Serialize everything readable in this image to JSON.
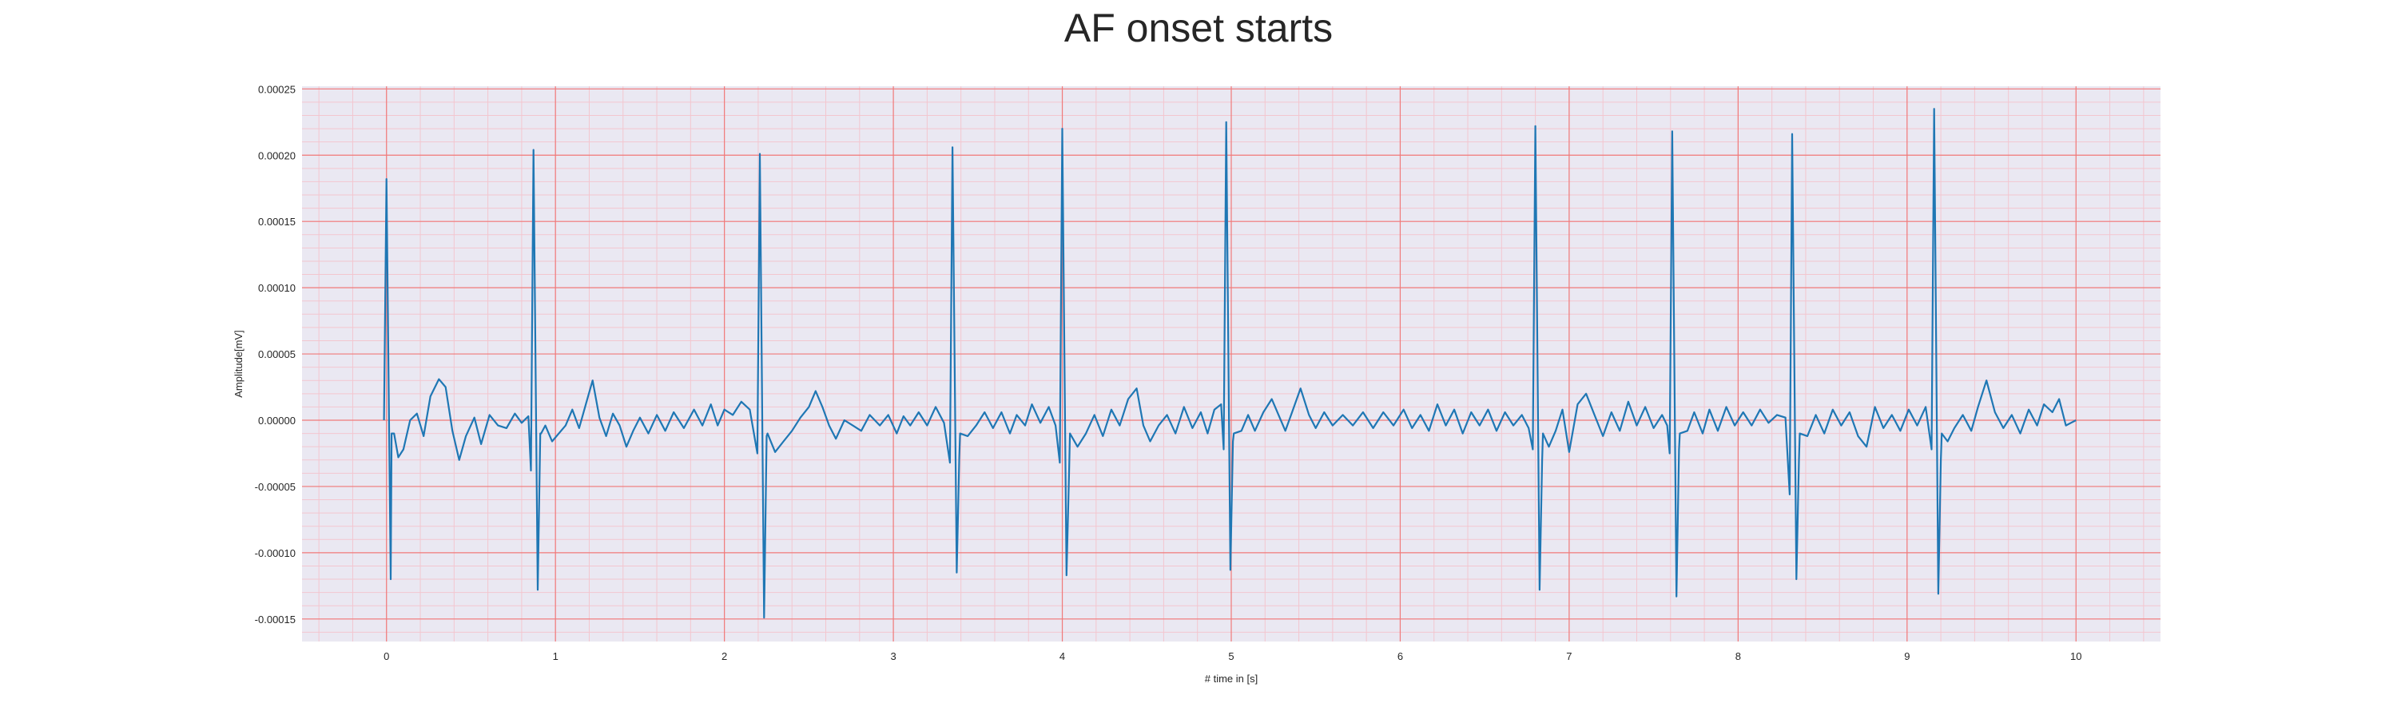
{
  "chart_data": {
    "type": "line",
    "title": "AF onset starts",
    "xlabel": "# time in [s]",
    "ylabel": "Amplitude[mV]",
    "xlim": [
      -0.5,
      10.5
    ],
    "ylim": [
      -0.000167,
      0.000252
    ],
    "xticks": [
      0,
      1,
      2,
      3,
      4,
      5,
      6,
      7,
      8,
      9,
      10
    ],
    "xtick_labels": [
      "0",
      "1",
      "2",
      "3",
      "4",
      "5",
      "6",
      "7",
      "8",
      "9",
      "10"
    ],
    "yticks": [
      -0.00015,
      -0.0001,
      -5e-05,
      0,
      5e-05,
      0.0001,
      0.00015,
      0.0002,
      0.00025
    ],
    "ytick_labels": [
      "-0.00015",
      "-0.00010",
      "-0.00005",
      "0.00000",
      "0.00005",
      "0.00010",
      "0.00015",
      "0.00020",
      "0.00025"
    ],
    "grid": true,
    "minor_grid": true,
    "colors": {
      "line": "#1f77b4",
      "background": "#eae8f2",
      "major_grid": "#f07a7a",
      "minor_grid": "#f3c6cf",
      "text": "#262626"
    },
    "beats": [
      {
        "t": 0.0,
        "q": 0.0,
        "r": 0.000182,
        "s": -0.00012
      },
      {
        "t": 0.87,
        "q": -3.8e-05,
        "r": 0.000204,
        "s": -0.000128
      },
      {
        "t": 2.21,
        "q": -2.5e-05,
        "r": 0.000201,
        "s": -0.000149
      },
      {
        "t": 3.35,
        "q": -3.2e-05,
        "r": 0.000206,
        "s": -0.000115
      },
      {
        "t": 4.0,
        "q": -3.2e-05,
        "r": 0.00022,
        "s": -0.000117
      },
      {
        "t": 4.97,
        "q": -2.2e-05,
        "r": 0.000225,
        "s": -0.000113
      },
      {
        "t": 6.8,
        "q": -2.2e-05,
        "r": 0.000222,
        "s": -0.000128
      },
      {
        "t": 7.61,
        "q": -2.5e-05,
        "r": 0.000218,
        "s": -0.000133
      },
      {
        "t": 8.32,
        "q": -5.6e-05,
        "r": 0.000216,
        "s": -0.00012
      },
      {
        "t": 9.16,
        "q": -2.2e-05,
        "r": 0.000235,
        "s": -0.000131
      }
    ],
    "baseline_points": [
      [
        0.03,
        -1e-05
      ],
      [
        0.07,
        -2.8e-05
      ],
      [
        0.1,
        -2.2e-05
      ],
      [
        0.14,
        0.0
      ],
      [
        0.18,
        5e-06
      ],
      [
        0.22,
        -1.2e-05
      ],
      [
        0.26,
        1.8e-05
      ],
      [
        0.31,
        3.1e-05
      ],
      [
        0.35,
        2.5e-05
      ],
      [
        0.39,
        -8e-06
      ],
      [
        0.43,
        -3e-05
      ],
      [
        0.47,
        -1.2e-05
      ],
      [
        0.52,
        2e-06
      ],
      [
        0.56,
        -1.8e-05
      ],
      [
        0.61,
        4e-06
      ],
      [
        0.66,
        -4e-06
      ],
      [
        0.71,
        -6e-06
      ],
      [
        0.76,
        5e-06
      ],
      [
        0.8,
        -2e-06
      ],
      [
        0.84,
        3e-06
      ],
      [
        0.91,
        -1e-05
      ],
      [
        0.94,
        -4e-06
      ],
      [
        0.98,
        -1.6e-05
      ],
      [
        1.02,
        -1e-05
      ],
      [
        1.06,
        -4e-06
      ],
      [
        1.1,
        8e-06
      ],
      [
        1.14,
        -6e-06
      ],
      [
        1.18,
        1.2e-05
      ],
      [
        1.22,
        3e-05
      ],
      [
        1.26,
        2e-06
      ],
      [
        1.3,
        -1.2e-05
      ],
      [
        1.34,
        5e-06
      ],
      [
        1.38,
        -4e-06
      ],
      [
        1.42,
        -2e-05
      ],
      [
        1.46,
        -8e-06
      ],
      [
        1.5,
        2e-06
      ],
      [
        1.55,
        -1e-05
      ],
      [
        1.6,
        4e-06
      ],
      [
        1.65,
        -8e-06
      ],
      [
        1.7,
        6e-06
      ],
      [
        1.76,
        -6e-06
      ],
      [
        1.82,
        8e-06
      ],
      [
        1.87,
        -4e-06
      ],
      [
        1.92,
        1.2e-05
      ],
      [
        1.96,
        -4e-06
      ],
      [
        2.0,
        8e-06
      ],
      [
        2.05,
        4e-06
      ],
      [
        2.1,
        1.4e-05
      ],
      [
        2.15,
        8e-06
      ],
      [
        2.25,
        -1.2e-05
      ],
      [
        2.3,
        -2.4e-05
      ],
      [
        2.35,
        -1.6e-05
      ],
      [
        2.4,
        -8e-06
      ],
      [
        2.45,
        2e-06
      ],
      [
        2.5,
        1e-05
      ],
      [
        2.54,
        2.2e-05
      ],
      [
        2.58,
        1e-05
      ],
      [
        2.62,
        -4e-06
      ],
      [
        2.66,
        -1.4e-05
      ],
      [
        2.71,
        0.0
      ],
      [
        2.76,
        -4e-06
      ],
      [
        2.81,
        -8e-06
      ],
      [
        2.86,
        4e-06
      ],
      [
        2.92,
        -4e-06
      ],
      [
        2.97,
        4e-06
      ],
      [
        3.02,
        -1e-05
      ],
      [
        3.06,
        3e-06
      ],
      [
        3.1,
        -4e-06
      ],
      [
        3.15,
        6e-06
      ],
      [
        3.2,
        -4e-06
      ],
      [
        3.25,
        1e-05
      ],
      [
        3.3,
        -2e-06
      ],
      [
        3.39,
        -2.8e-05
      ],
      [
        3.44,
        -1.2e-05
      ],
      [
        3.49,
        -4e-06
      ],
      [
        3.54,
        6e-06
      ],
      [
        3.59,
        -6e-06
      ],
      [
        3.64,
        6e-06
      ],
      [
        3.69,
        -1e-05
      ],
      [
        3.73,
        4e-06
      ],
      [
        3.78,
        -4e-06
      ],
      [
        3.82,
        1.2e-05
      ],
      [
        3.87,
        -2e-06
      ],
      [
        3.92,
        1e-05
      ],
      [
        3.96,
        -4e-06
      ],
      [
        4.04,
        -4e-05
      ],
      [
        4.09,
        -2e-05
      ],
      [
        4.14,
        -1e-05
      ],
      [
        4.19,
        4e-06
      ],
      [
        4.24,
        -1.2e-05
      ],
      [
        4.29,
        8e-06
      ],
      [
        4.34,
        -4e-06
      ],
      [
        4.39,
        1.6e-05
      ],
      [
        4.44,
        2.4e-05
      ],
      [
        4.48,
        -4e-06
      ],
      [
        4.52,
        -1.6e-05
      ],
      [
        4.57,
        -4e-06
      ],
      [
        4.62,
        4e-06
      ],
      [
        4.67,
        -1e-05
      ],
      [
        4.72,
        1e-05
      ],
      [
        4.77,
        -6e-06
      ],
      [
        4.82,
        6e-06
      ],
      [
        4.86,
        -1e-05
      ],
      [
        4.9,
        8e-06
      ],
      [
        4.94,
        1.2e-05
      ],
      [
        5.01,
        -1.6e-05
      ],
      [
        5.06,
        -8e-06
      ],
      [
        5.1,
        4e-06
      ],
      [
        5.14,
        -8e-06
      ],
      [
        5.19,
        6e-06
      ],
      [
        5.24,
        1.6e-05
      ],
      [
        5.28,
        4e-06
      ],
      [
        5.32,
        -8e-06
      ],
      [
        5.36,
        6e-06
      ],
      [
        5.41,
        2.4e-05
      ],
      [
        5.46,
        4e-06
      ],
      [
        5.5,
        -6e-06
      ],
      [
        5.55,
        6e-06
      ],
      [
        5.6,
        -4e-06
      ],
      [
        5.66,
        4e-06
      ],
      [
        5.72,
        -4e-06
      ],
      [
        5.78,
        6e-06
      ],
      [
        5.84,
        -6e-06
      ],
      [
        5.9,
        6e-06
      ],
      [
        5.96,
        -4e-06
      ],
      [
        6.02,
        8e-06
      ],
      [
        6.07,
        -6e-06
      ],
      [
        6.12,
        4e-06
      ],
      [
        6.17,
        -8e-06
      ],
      [
        6.22,
        1.2e-05
      ],
      [
        6.27,
        -4e-06
      ],
      [
        6.32,
        8e-06
      ],
      [
        6.37,
        -1e-05
      ],
      [
        6.42,
        6e-06
      ],
      [
        6.47,
        -4e-06
      ],
      [
        6.52,
        8e-06
      ],
      [
        6.57,
        -8e-06
      ],
      [
        6.62,
        6e-06
      ],
      [
        6.67,
        -4e-06
      ],
      [
        6.72,
        4e-06
      ],
      [
        6.76,
        -6e-06
      ],
      [
        6.84,
        -3e-05
      ],
      [
        6.88,
        -2e-05
      ],
      [
        6.92,
        -8e-06
      ],
      [
        6.96,
        8e-06
      ],
      [
        7.0,
        -2.4e-05
      ],
      [
        7.05,
        1.2e-05
      ],
      [
        7.1,
        2e-05
      ],
      [
        7.15,
        4e-06
      ],
      [
        7.2,
        -1.2e-05
      ],
      [
        7.25,
        6e-06
      ],
      [
        7.3,
        -8e-06
      ],
      [
        7.35,
        1.4e-05
      ],
      [
        7.4,
        -4e-06
      ],
      [
        7.45,
        1e-05
      ],
      [
        7.5,
        -6e-06
      ],
      [
        7.55,
        4e-06
      ],
      [
        7.58,
        -4e-06
      ],
      [
        7.65,
        -2.2e-05
      ],
      [
        7.7,
        -8e-06
      ],
      [
        7.74,
        6e-06
      ],
      [
        7.79,
        -1e-05
      ],
      [
        7.83,
        8e-06
      ],
      [
        7.88,
        -8e-06
      ],
      [
        7.93,
        1e-05
      ],
      [
        7.98,
        -4e-06
      ],
      [
        8.03,
        6e-06
      ],
      [
        8.08,
        -4e-06
      ],
      [
        8.13,
        8e-06
      ],
      [
        8.18,
        -2e-06
      ],
      [
        8.23,
        4e-06
      ],
      [
        8.28,
        2e-06
      ],
      [
        8.36,
        -3e-05
      ],
      [
        8.41,
        -1.2e-05
      ],
      [
        8.46,
        4e-06
      ],
      [
        8.51,
        -1e-05
      ],
      [
        8.56,
        8e-06
      ],
      [
        8.61,
        -4e-06
      ],
      [
        8.66,
        6e-06
      ],
      [
        8.71,
        -1.2e-05
      ],
      [
        8.76,
        -2e-05
      ],
      [
        8.81,
        1e-05
      ],
      [
        8.86,
        -6e-06
      ],
      [
        8.91,
        4e-06
      ],
      [
        8.96,
        -8e-06
      ],
      [
        9.01,
        8e-06
      ],
      [
        9.06,
        -4e-06
      ],
      [
        9.11,
        1e-05
      ],
      [
        9.2,
        -3e-05
      ],
      [
        9.24,
        -1.6e-05
      ],
      [
        9.28,
        -6e-06
      ],
      [
        9.33,
        4e-06
      ],
      [
        9.38,
        -8e-06
      ],
      [
        9.42,
        1e-05
      ],
      [
        9.47,
        3e-05
      ],
      [
        9.52,
        6e-06
      ],
      [
        9.57,
        -6e-06
      ],
      [
        9.62,
        4e-06
      ],
      [
        9.67,
        -1e-05
      ],
      [
        9.72,
        8e-06
      ],
      [
        9.77,
        -4e-06
      ],
      [
        9.81,
        1.2e-05
      ],
      [
        9.86,
        6e-06
      ],
      [
        9.9,
        1.6e-05
      ],
      [
        9.94,
        -4e-06
      ],
      [
        9.97,
        -2e-06
      ],
      [
        10.0,
        0.0
      ]
    ]
  }
}
